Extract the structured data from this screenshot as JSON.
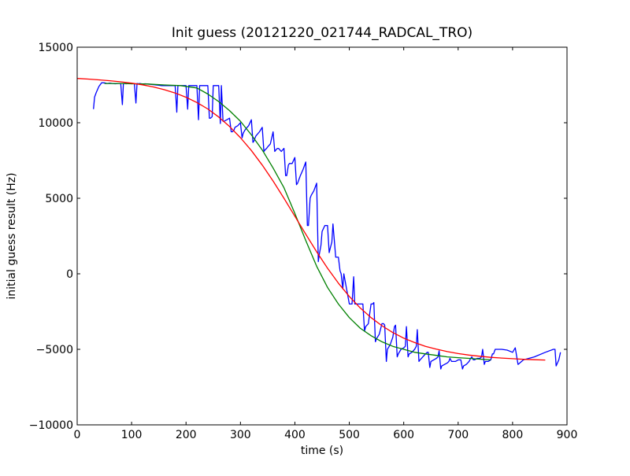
{
  "chart_data": {
    "type": "line",
    "title": "Init guess (20121220_021744_RADCAL_TRO)",
    "xlabel": "time (s)",
    "ylabel": "initial guess result (Hz)",
    "xlim": [
      0,
      900
    ],
    "ylim": [
      -10000,
      15000
    ],
    "xticks": [
      0,
      100,
      200,
      300,
      400,
      500,
      600,
      700,
      800,
      900
    ],
    "yticks": [
      -10000,
      -5000,
      0,
      5000,
      10000,
      15000
    ],
    "xtick_labels": [
      "0",
      "100",
      "200",
      "300",
      "400",
      "500",
      "600",
      "700",
      "800",
      "900"
    ],
    "ytick_labels": [
      "−10000",
      "−5000",
      "0",
      "5000",
      "10000",
      "15000"
    ],
    "grid": false,
    "legend": "none",
    "series": [
      {
        "color": "#0000ff",
        "x": [
          30,
          32,
          35,
          40,
          45,
          50,
          55,
          60,
          65,
          70,
          75,
          80,
          83,
          85,
          88,
          90,
          95,
          100,
          105,
          108,
          110,
          113,
          115,
          120,
          125,
          130,
          135,
          140,
          145,
          150,
          155,
          160,
          165,
          170,
          175,
          180,
          183,
          185,
          188,
          190,
          195,
          200,
          203,
          205,
          208,
          210,
          215,
          220,
          223,
          225,
          228,
          230,
          235,
          240,
          243,
          245,
          248,
          250,
          255,
          260,
          263,
          265,
          268,
          270,
          275,
          280,
          283,
          285,
          288,
          290,
          295,
          300,
          303,
          305,
          308,
          310,
          315,
          320,
          323,
          325,
          328,
          330,
          335,
          340,
          343,
          345,
          348,
          350,
          355,
          360,
          363,
          365,
          368,
          370,
          375,
          380,
          383,
          385,
          388,
          390,
          395,
          400,
          403,
          405,
          408,
          410,
          415,
          420,
          423,
          425,
          428,
          430,
          435,
          440,
          443,
          445,
          448,
          450,
          455,
          460,
          463,
          465,
          468,
          470,
          475,
          480,
          483,
          485,
          488,
          490,
          495,
          500,
          503,
          505,
          508,
          510,
          515,
          520,
          523,
          525,
          528,
          530,
          535,
          540,
          543,
          545,
          548,
          550,
          555,
          560,
          563,
          565,
          568,
          570,
          575,
          580,
          583,
          585,
          588,
          590,
          595,
          600,
          603,
          605,
          608,
          610,
          615,
          620,
          623,
          625,
          628,
          630,
          635,
          640,
          643,
          645,
          648,
          650,
          655,
          660,
          663,
          665,
          668,
          670,
          675,
          680,
          683,
          685,
          688,
          690,
          695,
          700,
          703,
          705,
          708,
          710,
          715,
          720,
          723,
          725,
          728,
          730,
          735,
          740,
          743,
          745,
          748,
          750,
          755,
          760,
          763,
          765,
          768,
          770,
          780,
          790,
          800,
          805,
          810,
          820,
          840,
          860,
          875,
          878,
          880,
          885,
          888
        ],
        "y": [
          10900,
          11700,
          12000,
          12400,
          12650,
          12640,
          12600,
          12620,
          12600,
          12580,
          12600,
          12600,
          11200,
          12600,
          12600,
          12580,
          12600,
          12580,
          12600,
          11300,
          12600,
          12580,
          12600,
          12560,
          12580,
          12560,
          12540,
          12520,
          12500,
          12480,
          12460,
          12460,
          12460,
          12460,
          12460,
          12460,
          10700,
          12460,
          12460,
          12460,
          12460,
          12460,
          10900,
          12460,
          12460,
          12460,
          12460,
          12460,
          10200,
          12460,
          12460,
          12460,
          12460,
          12460,
          10300,
          10300,
          10400,
          12460,
          12460,
          12460,
          9950,
          12460,
          10100,
          10100,
          10200,
          10300,
          9400,
          9400,
          9500,
          9700,
          9800,
          10000,
          9000,
          9300,
          9500,
          9600,
          9800,
          10200,
          8700,
          8800,
          9100,
          9200,
          9400,
          9700,
          8100,
          8200,
          8300,
          8400,
          8600,
          9400,
          8100,
          8200,
          8300,
          8300,
          8100,
          8300,
          6500,
          6500,
          7200,
          7300,
          7300,
          7700,
          5900,
          6000,
          6300,
          6500,
          6900,
          7400,
          3200,
          3200,
          5000,
          5200,
          5500,
          6000,
          800,
          1300,
          1900,
          2800,
          3200,
          3200,
          1400,
          1700,
          2100,
          3300,
          1100,
          1100,
          200,
          0,
          -1000,
          0,
          -1000,
          -2000,
          -2000,
          -2000,
          -200,
          -2000,
          -2000,
          -2000,
          -2000,
          -2000,
          -3800,
          -3500,
          -3300,
          -2000,
          -2000,
          -1900,
          -4500,
          -4300,
          -4000,
          -3300,
          -3300,
          -3400,
          -5800,
          -5000,
          -4700,
          -4200,
          -3500,
          -3400,
          -5500,
          -5300,
          -5000,
          -4900,
          -4800,
          -3500,
          -5500,
          -5300,
          -5200,
          -5000,
          -4800,
          -3700,
          -5800,
          -5700,
          -5500,
          -5300,
          -5200,
          -5200,
          -6200,
          -5800,
          -5700,
          -5600,
          -5500,
          -5100,
          -6300,
          -6100,
          -6000,
          -5900,
          -5800,
          -5600,
          -5800,
          -5800,
          -5800,
          -5700,
          -5700,
          -5700,
          -6300,
          -6100,
          -6000,
          -5800,
          -5600,
          -5500,
          -5700,
          -5700,
          -5600,
          -5600,
          -5500,
          -5000,
          -6000,
          -5800,
          -5800,
          -5700,
          -5300,
          -5300,
          -5000,
          -5000,
          -5000,
          -5050,
          -5200,
          -4900,
          -6000,
          -5700,
          -5500,
          -5200,
          -5000,
          -5000,
          -6100,
          -5700,
          -5200
        ]
      },
      {
        "color": "#008000",
        "x": [
          50,
          80,
          100,
          130,
          160,
          190,
          220,
          240,
          260,
          280,
          300,
          320,
          340,
          360,
          380,
          400,
          420,
          440,
          460,
          480,
          500,
          520,
          540,
          560,
          580,
          600,
          620,
          640,
          660,
          680,
          700,
          720,
          740,
          760
        ],
        "y": [
          12600,
          12600,
          12580,
          12560,
          12500,
          12460,
          12300,
          11900,
          11400,
          10800,
          10100,
          9200,
          8200,
          7000,
          5700,
          4000,
          2200,
          500,
          -900,
          -2000,
          -2900,
          -3600,
          -4100,
          -4500,
          -4800,
          -5000,
          -5200,
          -5300,
          -5400,
          -5500,
          -5550,
          -5600,
          -5650,
          -5700
        ]
      },
      {
        "color": "#ff0000",
        "x": [
          0,
          20,
          40,
          60,
          80,
          100,
          120,
          140,
          160,
          180,
          200,
          220,
          240,
          260,
          280,
          300,
          320,
          340,
          360,
          380,
          400,
          420,
          440,
          460,
          480,
          500,
          520,
          540,
          560,
          580,
          600,
          620,
          640,
          660,
          680,
          700,
          720,
          740,
          760,
          780,
          800,
          820,
          840,
          860
        ],
        "y": [
          12930,
          12890,
          12840,
          12780,
          12710,
          12620,
          12510,
          12370,
          12190,
          11970,
          11690,
          11340,
          10910,
          10380,
          9750,
          9010,
          8160,
          7200,
          6140,
          5000,
          3810,
          2620,
          1460,
          370,
          -620,
          -1500,
          -2260,
          -2900,
          -3440,
          -3890,
          -4260,
          -4550,
          -4800,
          -4990,
          -5150,
          -5280,
          -5380,
          -5460,
          -5530,
          -5580,
          -5620,
          -5660,
          -5690,
          -5710
        ]
      }
    ]
  }
}
